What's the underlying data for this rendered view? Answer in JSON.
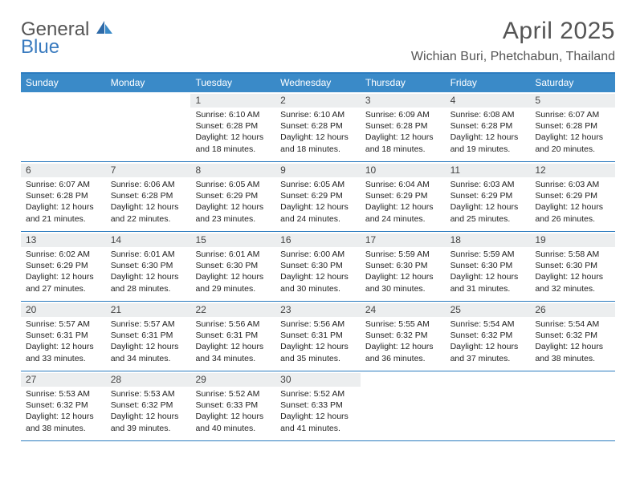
{
  "logo": {
    "general": "General",
    "blue": "Blue"
  },
  "title": "April 2025",
  "location": "Wichian Buri, Phetchabun, Thailand",
  "colors": {
    "header_bg": "#3a8ac8",
    "rule": "#2b7bbf",
    "daynum_bg": "#eceeef",
    "text_title": "#555555",
    "logo_blue": "#3a7bbf"
  },
  "day_headers": [
    "Sunday",
    "Monday",
    "Tuesday",
    "Wednesday",
    "Thursday",
    "Friday",
    "Saturday"
  ],
  "weeks": [
    [
      {
        "n": "",
        "sunrise": "",
        "sunset": "",
        "daylight": ""
      },
      {
        "n": "",
        "sunrise": "",
        "sunset": "",
        "daylight": ""
      },
      {
        "n": "1",
        "sunrise": "Sunrise: 6:10 AM",
        "sunset": "Sunset: 6:28 PM",
        "daylight": "Daylight: 12 hours and 18 minutes."
      },
      {
        "n": "2",
        "sunrise": "Sunrise: 6:10 AM",
        "sunset": "Sunset: 6:28 PM",
        "daylight": "Daylight: 12 hours and 18 minutes."
      },
      {
        "n": "3",
        "sunrise": "Sunrise: 6:09 AM",
        "sunset": "Sunset: 6:28 PM",
        "daylight": "Daylight: 12 hours and 18 minutes."
      },
      {
        "n": "4",
        "sunrise": "Sunrise: 6:08 AM",
        "sunset": "Sunset: 6:28 PM",
        "daylight": "Daylight: 12 hours and 19 minutes."
      },
      {
        "n": "5",
        "sunrise": "Sunrise: 6:07 AM",
        "sunset": "Sunset: 6:28 PM",
        "daylight": "Daylight: 12 hours and 20 minutes."
      }
    ],
    [
      {
        "n": "6",
        "sunrise": "Sunrise: 6:07 AM",
        "sunset": "Sunset: 6:28 PM",
        "daylight": "Daylight: 12 hours and 21 minutes."
      },
      {
        "n": "7",
        "sunrise": "Sunrise: 6:06 AM",
        "sunset": "Sunset: 6:28 PM",
        "daylight": "Daylight: 12 hours and 22 minutes."
      },
      {
        "n": "8",
        "sunrise": "Sunrise: 6:05 AM",
        "sunset": "Sunset: 6:29 PM",
        "daylight": "Daylight: 12 hours and 23 minutes."
      },
      {
        "n": "9",
        "sunrise": "Sunrise: 6:05 AM",
        "sunset": "Sunset: 6:29 PM",
        "daylight": "Daylight: 12 hours and 24 minutes."
      },
      {
        "n": "10",
        "sunrise": "Sunrise: 6:04 AM",
        "sunset": "Sunset: 6:29 PM",
        "daylight": "Daylight: 12 hours and 24 minutes."
      },
      {
        "n": "11",
        "sunrise": "Sunrise: 6:03 AM",
        "sunset": "Sunset: 6:29 PM",
        "daylight": "Daylight: 12 hours and 25 minutes."
      },
      {
        "n": "12",
        "sunrise": "Sunrise: 6:03 AM",
        "sunset": "Sunset: 6:29 PM",
        "daylight": "Daylight: 12 hours and 26 minutes."
      }
    ],
    [
      {
        "n": "13",
        "sunrise": "Sunrise: 6:02 AM",
        "sunset": "Sunset: 6:29 PM",
        "daylight": "Daylight: 12 hours and 27 minutes."
      },
      {
        "n": "14",
        "sunrise": "Sunrise: 6:01 AM",
        "sunset": "Sunset: 6:30 PM",
        "daylight": "Daylight: 12 hours and 28 minutes."
      },
      {
        "n": "15",
        "sunrise": "Sunrise: 6:01 AM",
        "sunset": "Sunset: 6:30 PM",
        "daylight": "Daylight: 12 hours and 29 minutes."
      },
      {
        "n": "16",
        "sunrise": "Sunrise: 6:00 AM",
        "sunset": "Sunset: 6:30 PM",
        "daylight": "Daylight: 12 hours and 30 minutes."
      },
      {
        "n": "17",
        "sunrise": "Sunrise: 5:59 AM",
        "sunset": "Sunset: 6:30 PM",
        "daylight": "Daylight: 12 hours and 30 minutes."
      },
      {
        "n": "18",
        "sunrise": "Sunrise: 5:59 AM",
        "sunset": "Sunset: 6:30 PM",
        "daylight": "Daylight: 12 hours and 31 minutes."
      },
      {
        "n": "19",
        "sunrise": "Sunrise: 5:58 AM",
        "sunset": "Sunset: 6:30 PM",
        "daylight": "Daylight: 12 hours and 32 minutes."
      }
    ],
    [
      {
        "n": "20",
        "sunrise": "Sunrise: 5:57 AM",
        "sunset": "Sunset: 6:31 PM",
        "daylight": "Daylight: 12 hours and 33 minutes."
      },
      {
        "n": "21",
        "sunrise": "Sunrise: 5:57 AM",
        "sunset": "Sunset: 6:31 PM",
        "daylight": "Daylight: 12 hours and 34 minutes."
      },
      {
        "n": "22",
        "sunrise": "Sunrise: 5:56 AM",
        "sunset": "Sunset: 6:31 PM",
        "daylight": "Daylight: 12 hours and 34 minutes."
      },
      {
        "n": "23",
        "sunrise": "Sunrise: 5:56 AM",
        "sunset": "Sunset: 6:31 PM",
        "daylight": "Daylight: 12 hours and 35 minutes."
      },
      {
        "n": "24",
        "sunrise": "Sunrise: 5:55 AM",
        "sunset": "Sunset: 6:32 PM",
        "daylight": "Daylight: 12 hours and 36 minutes."
      },
      {
        "n": "25",
        "sunrise": "Sunrise: 5:54 AM",
        "sunset": "Sunset: 6:32 PM",
        "daylight": "Daylight: 12 hours and 37 minutes."
      },
      {
        "n": "26",
        "sunrise": "Sunrise: 5:54 AM",
        "sunset": "Sunset: 6:32 PM",
        "daylight": "Daylight: 12 hours and 38 minutes."
      }
    ],
    [
      {
        "n": "27",
        "sunrise": "Sunrise: 5:53 AM",
        "sunset": "Sunset: 6:32 PM",
        "daylight": "Daylight: 12 hours and 38 minutes."
      },
      {
        "n": "28",
        "sunrise": "Sunrise: 5:53 AM",
        "sunset": "Sunset: 6:32 PM",
        "daylight": "Daylight: 12 hours and 39 minutes."
      },
      {
        "n": "29",
        "sunrise": "Sunrise: 5:52 AM",
        "sunset": "Sunset: 6:33 PM",
        "daylight": "Daylight: 12 hours and 40 minutes."
      },
      {
        "n": "30",
        "sunrise": "Sunrise: 5:52 AM",
        "sunset": "Sunset: 6:33 PM",
        "daylight": "Daylight: 12 hours and 41 minutes."
      },
      {
        "n": "",
        "sunrise": "",
        "sunset": "",
        "daylight": ""
      },
      {
        "n": "",
        "sunrise": "",
        "sunset": "",
        "daylight": ""
      },
      {
        "n": "",
        "sunrise": "",
        "sunset": "",
        "daylight": ""
      }
    ]
  ]
}
